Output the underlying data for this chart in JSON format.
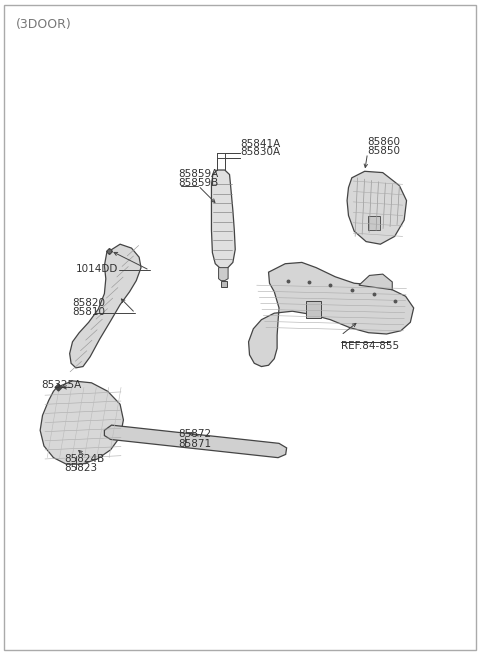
{
  "title": "(3DOOR)",
  "bg_color": "#ffffff",
  "line_color": "#444444",
  "text_color": "#333333",
  "border_color": "#aaaaaa",
  "labels": {
    "85841A_85830A": [
      "85841A",
      "85830A"
    ],
    "85859A_85859B": [
      "85859A",
      "85859B"
    ],
    "85860_85850": [
      "85860",
      "85850"
    ],
    "1014DD": [
      "1014DD"
    ],
    "85820_85810": [
      "85820",
      "85810"
    ],
    "85325A": [
      "85325A"
    ],
    "85824B_85823": [
      "85824B",
      "85823"
    ],
    "85872_85871": [
      "85872",
      "85871"
    ],
    "REF": [
      "REF.84-855"
    ]
  }
}
